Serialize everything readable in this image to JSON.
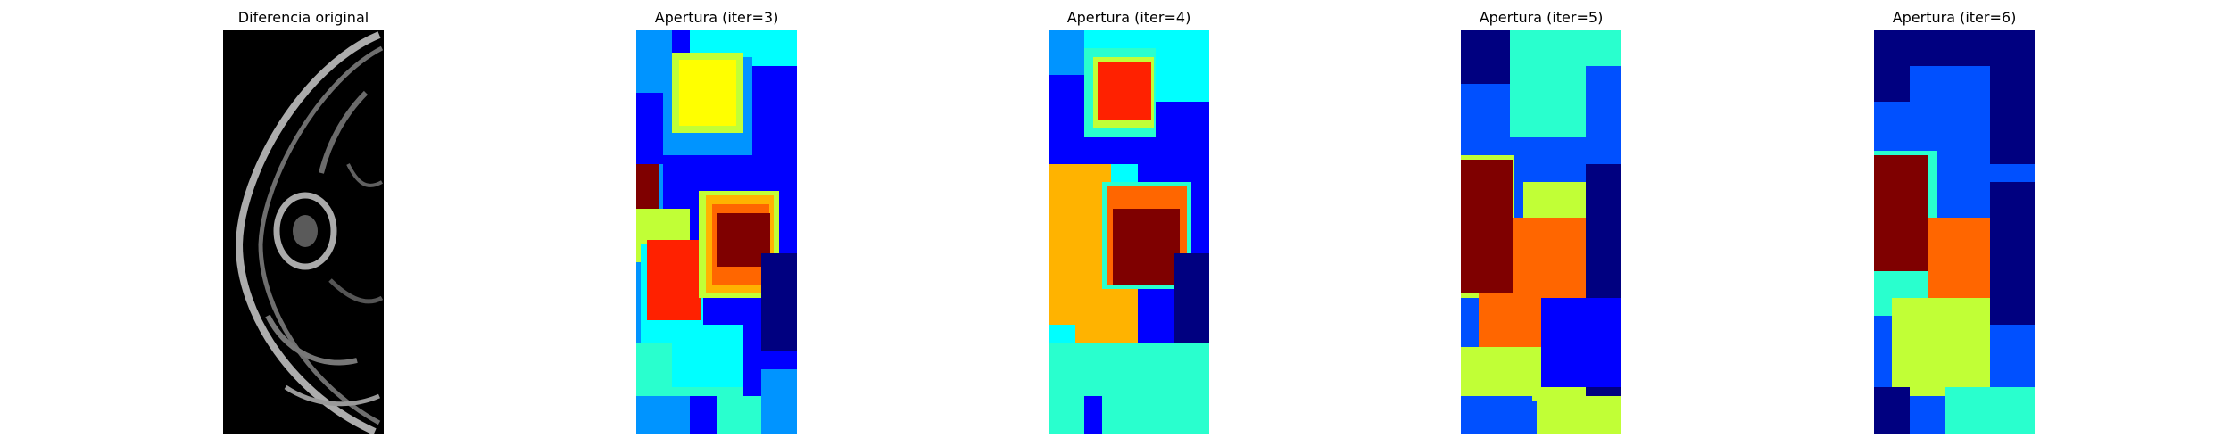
{
  "panels": [
    {
      "title": "Diferencia original",
      "colormap": "gray"
    },
    {
      "title": "Apertura (iter=3)",
      "colormap": "jet"
    },
    {
      "title": "Apertura (iter=4)",
      "colormap": "jet"
    },
    {
      "title": "Apertura (iter=5)",
      "colormap": "jet"
    },
    {
      "title": "Apertura (iter=6)",
      "colormap": "jet"
    }
  ],
  "colors": {
    "dark_blue": "#000080",
    "blue": "#0000ff",
    "mid_blue": "#0050ff",
    "light_blue": "#0094ff",
    "cyan": "#00ffff",
    "aqua": "#29ffce",
    "green_yellow": "#c1ff36",
    "yellow": "#ffff00",
    "orange": "#ffb300",
    "red_orange": "#ff6600",
    "red": "#ff2100",
    "dark_red": "#7f0000"
  }
}
